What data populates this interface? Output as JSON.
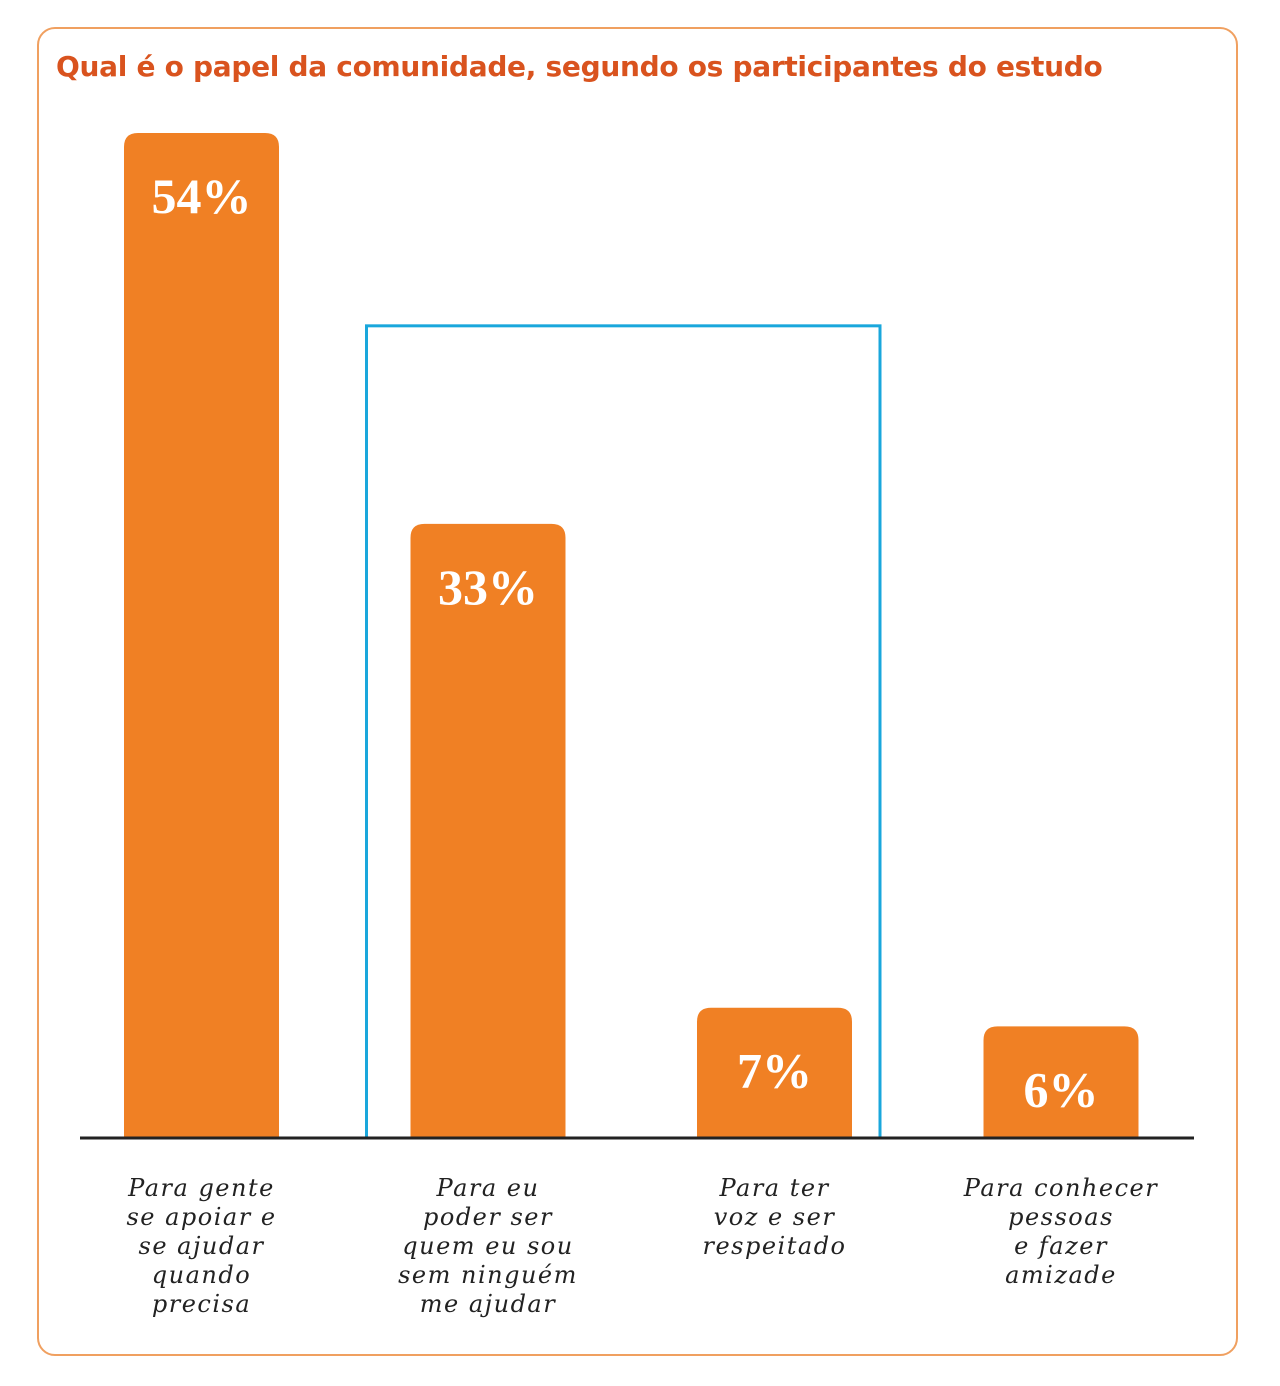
{
  "chart_data": {
    "type": "bar",
    "title": "Qual é o papel da comunidade, segundo os participantes do estudo",
    "categories": [
      [
        "Para gente",
        "se apoiar e",
        "se ajudar",
        "quando",
        "precisa"
      ],
      [
        "Para eu",
        "poder ser",
        "quem eu sou",
        "sem ninguém",
        "me ajudar"
      ],
      [
        "Para ter",
        "voz e ser",
        "respeitado"
      ],
      [
        "Para conhecer",
        "pessoas",
        "e fazer",
        "amizade"
      ]
    ],
    "values": [
      54,
      33,
      7,
      6
    ],
    "value_labels": [
      "54%",
      "33%",
      "7%",
      "6%"
    ],
    "unit": "%",
    "ylim": [
      0,
      54
    ],
    "grid": false,
    "highlight": {
      "categories_index": [
        1,
        2
      ],
      "color": "#1AA7DC"
    },
    "colors": {
      "bar": "#F08024",
      "title": "#D9531E",
      "frame": "#F0A060",
      "baseline": "#222222"
    }
  }
}
